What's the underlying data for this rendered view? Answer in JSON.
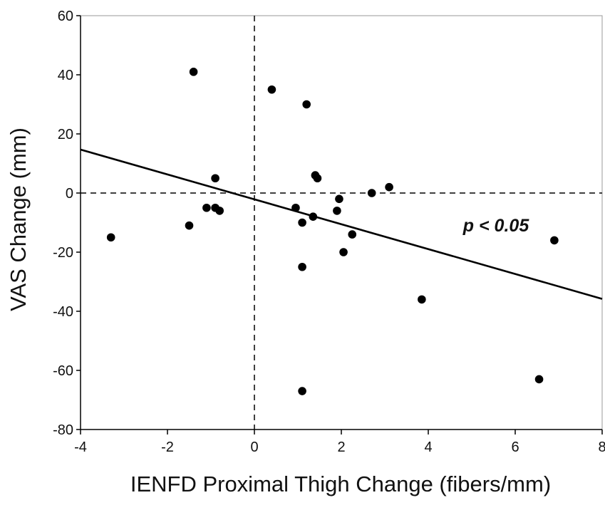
{
  "chart_data": {
    "type": "scatter",
    "xlabel": "IENFD Proximal Thigh Change (fibers/mm)",
    "ylabel": "VAS Change (mm)",
    "xlim": [
      -4,
      8
    ],
    "ylim": [
      -80,
      60
    ],
    "xticks": [
      "-4",
      "-2",
      "0",
      "2",
      "4",
      "6",
      "8"
    ],
    "yticks": [
      "60",
      "40",
      "20",
      "0",
      "-20",
      "-40",
      "-60",
      "-80"
    ],
    "grid": false,
    "legend": "none",
    "reference_lines": {
      "x": 0,
      "y": 0,
      "style": "dashed"
    },
    "annotation": {
      "text": "p < 0.05",
      "x": 4.8,
      "y": -13
    },
    "points": [
      {
        "x": -3.3,
        "y": -15
      },
      {
        "x": -1.4,
        "y": 41
      },
      {
        "x": -1.5,
        "y": -11
      },
      {
        "x": -1.1,
        "y": -5
      },
      {
        "x": -0.9,
        "y": 5
      },
      {
        "x": -0.9,
        "y": -5
      },
      {
        "x": -0.8,
        "y": -6
      },
      {
        "x": 0.4,
        "y": 35
      },
      {
        "x": 1.2,
        "y": 30
      },
      {
        "x": 1.4,
        "y": 6
      },
      {
        "x": 1.45,
        "y": 5
      },
      {
        "x": 0.95,
        "y": -5
      },
      {
        "x": 1.1,
        "y": -10
      },
      {
        "x": 1.35,
        "y": -8
      },
      {
        "x": 1.9,
        "y": -6
      },
      {
        "x": 1.95,
        "y": -2
      },
      {
        "x": 2.05,
        "y": -20
      },
      {
        "x": 2.25,
        "y": -14
      },
      {
        "x": 1.1,
        "y": -25
      },
      {
        "x": 1.1,
        "y": -67
      },
      {
        "x": 2.7,
        "y": 0
      },
      {
        "x": 3.1,
        "y": 2
      },
      {
        "x": 3.85,
        "y": -36
      },
      {
        "x": 6.55,
        "y": -63
      },
      {
        "x": 6.9,
        "y": -16
      }
    ],
    "fit_line": {
      "x": [
        -4,
        8
      ],
      "y": [
        14.7,
        -35.8
      ]
    },
    "colors": {
      "points": "#000000",
      "line": "#000000"
    }
  }
}
